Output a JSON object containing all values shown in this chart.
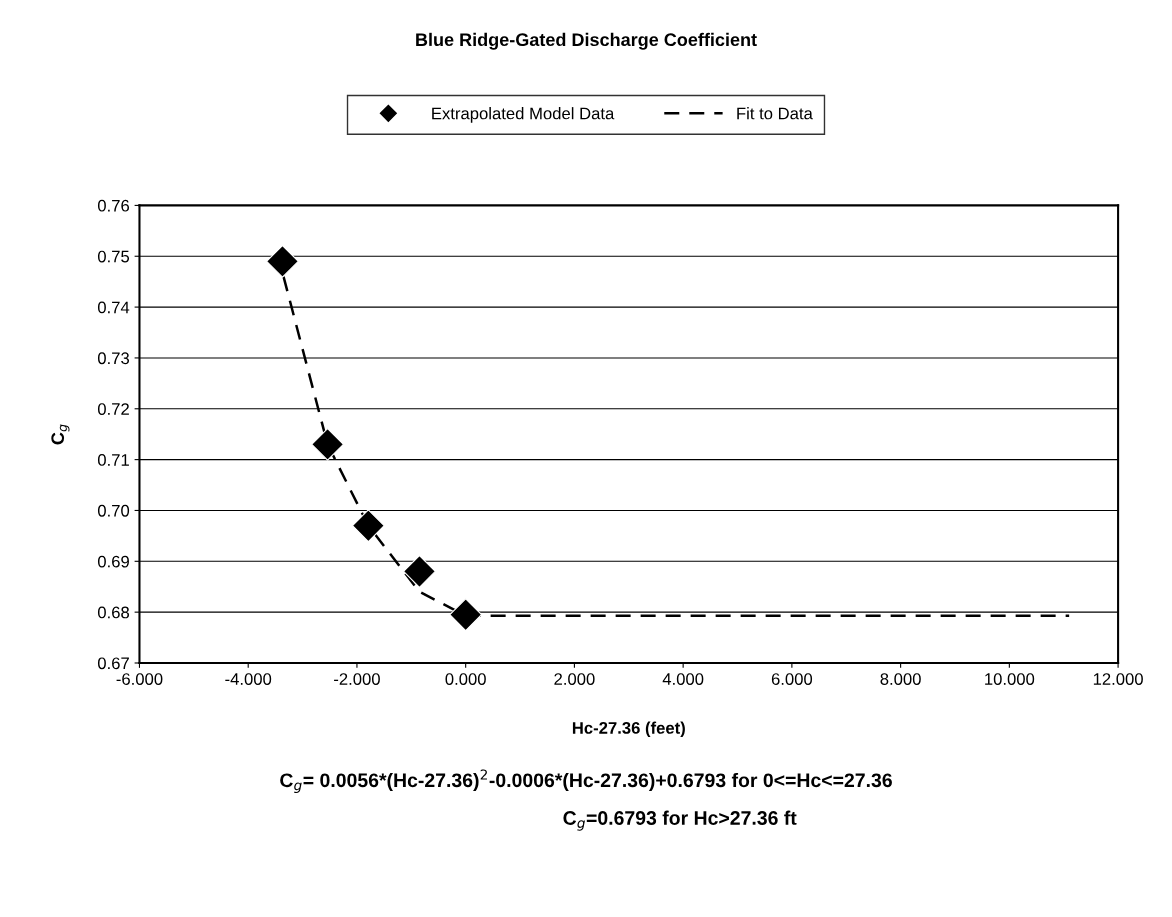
{
  "chart_data": {
    "type": "scatter",
    "title": "Blue Ridge-Gated Discharge Coefficient",
    "xlabel": "Hc-27.36 (feet)",
    "ylabel": "C$_{g}$",
    "series": [
      {
        "name": "Extrapolated Model Data",
        "marker": "diamond",
        "color": "#000000",
        "x": [
          -3.37,
          -2.54,
          -1.79,
          -0.85,
          0.0
        ],
        "values": [
          0.749,
          0.713,
          0.697,
          0.688,
          0.6795
        ]
      },
      {
        "name": "Fit to Data",
        "type": "line",
        "line_style": "dashed",
        "color": "#000000",
        "x": [
          -3.35,
          -2.54,
          -1.79,
          -0.85,
          0.0,
          11.1
        ],
        "values": [
          0.746,
          0.713,
          0.697,
          0.684,
          0.6793,
          0.6793
        ]
      }
    ],
    "xlim": [
      -6,
      12
    ],
    "xticks": [
      {
        "value": -6,
        "label": "-6.000"
      },
      {
        "value": -4,
        "label": "-4.000"
      },
      {
        "value": -2,
        "label": "-2.000"
      },
      {
        "value": 0,
        "label": "0.000"
      },
      {
        "value": 2,
        "label": "2.000"
      },
      {
        "value": 4,
        "label": "4.000"
      },
      {
        "value": 6,
        "label": "6.000"
      },
      {
        "value": 8,
        "label": "8.000"
      },
      {
        "value": 10,
        "label": "10.000"
      },
      {
        "value": 12,
        "label": "12.000"
      }
    ],
    "ylim": [
      0.67,
      0.76
    ],
    "yticks": [
      {
        "value": 0.67,
        "label": "0.67"
      },
      {
        "value": 0.68,
        "label": "0.68"
      },
      {
        "value": 0.69,
        "label": "0.69"
      },
      {
        "value": 0.7,
        "label": "0.70"
      },
      {
        "value": 0.71,
        "label": "0.71"
      },
      {
        "value": 0.72,
        "label": "0.72"
      },
      {
        "value": 0.73,
        "label": "0.73"
      },
      {
        "value": 0.74,
        "label": "0.74"
      },
      {
        "value": 0.75,
        "label": "0.75"
      },
      {
        "value": 0.76,
        "label": "0.76"
      }
    ],
    "grid": "y",
    "legend": "top",
    "annotations": [
      "C$_{g}$= 0.0056*(Hc-27.36)$^{2}$-0.0006*(Hc-27.36)+0.6793 for 0<=Hc<=27.36",
      "C$_{g}$=0.6793 for Hc>27.36 ft"
    ]
  }
}
